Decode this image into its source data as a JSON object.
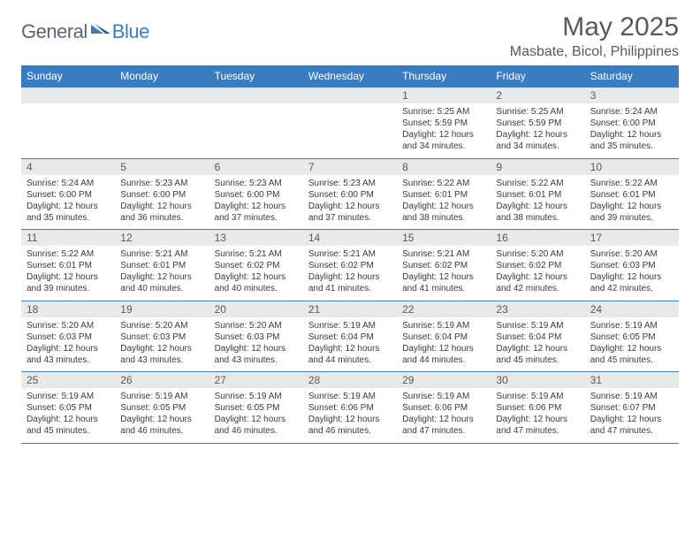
{
  "logo": {
    "general": "General",
    "blue": "Blue"
  },
  "title": "May 2025",
  "location": "Masbate, Bicol, Philippines",
  "colors": {
    "header_bg": "#3b7bbf",
    "header_text": "#ffffff",
    "daynum_bg": "#e9e9e9",
    "text_gray": "#595959",
    "body_text": "#3a3a3a",
    "border": "#3b7bbf",
    "page_bg": "#ffffff"
  },
  "typography": {
    "title_fontsize": 30,
    "location_fontsize": 16,
    "dayheader_fontsize": 12,
    "daynum_fontsize": 12,
    "cell_fontsize": 10
  },
  "day_names": [
    "Sunday",
    "Monday",
    "Tuesday",
    "Wednesday",
    "Thursday",
    "Friday",
    "Saturday"
  ],
  "weeks": [
    [
      null,
      null,
      null,
      null,
      {
        "n": "1",
        "sr": "Sunrise: 5:25 AM",
        "ss": "Sunset: 5:59 PM",
        "d1": "Daylight: 12 hours",
        "d2": "and 34 minutes."
      },
      {
        "n": "2",
        "sr": "Sunrise: 5:25 AM",
        "ss": "Sunset: 5:59 PM",
        "d1": "Daylight: 12 hours",
        "d2": "and 34 minutes."
      },
      {
        "n": "3",
        "sr": "Sunrise: 5:24 AM",
        "ss": "Sunset: 6:00 PM",
        "d1": "Daylight: 12 hours",
        "d2": "and 35 minutes."
      }
    ],
    [
      {
        "n": "4",
        "sr": "Sunrise: 5:24 AM",
        "ss": "Sunset: 6:00 PM",
        "d1": "Daylight: 12 hours",
        "d2": "and 35 minutes."
      },
      {
        "n": "5",
        "sr": "Sunrise: 5:23 AM",
        "ss": "Sunset: 6:00 PM",
        "d1": "Daylight: 12 hours",
        "d2": "and 36 minutes."
      },
      {
        "n": "6",
        "sr": "Sunrise: 5:23 AM",
        "ss": "Sunset: 6:00 PM",
        "d1": "Daylight: 12 hours",
        "d2": "and 37 minutes."
      },
      {
        "n": "7",
        "sr": "Sunrise: 5:23 AM",
        "ss": "Sunset: 6:00 PM",
        "d1": "Daylight: 12 hours",
        "d2": "and 37 minutes."
      },
      {
        "n": "8",
        "sr": "Sunrise: 5:22 AM",
        "ss": "Sunset: 6:01 PM",
        "d1": "Daylight: 12 hours",
        "d2": "and 38 minutes."
      },
      {
        "n": "9",
        "sr": "Sunrise: 5:22 AM",
        "ss": "Sunset: 6:01 PM",
        "d1": "Daylight: 12 hours",
        "d2": "and 38 minutes."
      },
      {
        "n": "10",
        "sr": "Sunrise: 5:22 AM",
        "ss": "Sunset: 6:01 PM",
        "d1": "Daylight: 12 hours",
        "d2": "and 39 minutes."
      }
    ],
    [
      {
        "n": "11",
        "sr": "Sunrise: 5:22 AM",
        "ss": "Sunset: 6:01 PM",
        "d1": "Daylight: 12 hours",
        "d2": "and 39 minutes."
      },
      {
        "n": "12",
        "sr": "Sunrise: 5:21 AM",
        "ss": "Sunset: 6:01 PM",
        "d1": "Daylight: 12 hours",
        "d2": "and 40 minutes."
      },
      {
        "n": "13",
        "sr": "Sunrise: 5:21 AM",
        "ss": "Sunset: 6:02 PM",
        "d1": "Daylight: 12 hours",
        "d2": "and 40 minutes."
      },
      {
        "n": "14",
        "sr": "Sunrise: 5:21 AM",
        "ss": "Sunset: 6:02 PM",
        "d1": "Daylight: 12 hours",
        "d2": "and 41 minutes."
      },
      {
        "n": "15",
        "sr": "Sunrise: 5:21 AM",
        "ss": "Sunset: 6:02 PM",
        "d1": "Daylight: 12 hours",
        "d2": "and 41 minutes."
      },
      {
        "n": "16",
        "sr": "Sunrise: 5:20 AM",
        "ss": "Sunset: 6:02 PM",
        "d1": "Daylight: 12 hours",
        "d2": "and 42 minutes."
      },
      {
        "n": "17",
        "sr": "Sunrise: 5:20 AM",
        "ss": "Sunset: 6:03 PM",
        "d1": "Daylight: 12 hours",
        "d2": "and 42 minutes."
      }
    ],
    [
      {
        "n": "18",
        "sr": "Sunrise: 5:20 AM",
        "ss": "Sunset: 6:03 PM",
        "d1": "Daylight: 12 hours",
        "d2": "and 43 minutes."
      },
      {
        "n": "19",
        "sr": "Sunrise: 5:20 AM",
        "ss": "Sunset: 6:03 PM",
        "d1": "Daylight: 12 hours",
        "d2": "and 43 minutes."
      },
      {
        "n": "20",
        "sr": "Sunrise: 5:20 AM",
        "ss": "Sunset: 6:03 PM",
        "d1": "Daylight: 12 hours",
        "d2": "and 43 minutes."
      },
      {
        "n": "21",
        "sr": "Sunrise: 5:19 AM",
        "ss": "Sunset: 6:04 PM",
        "d1": "Daylight: 12 hours",
        "d2": "and 44 minutes."
      },
      {
        "n": "22",
        "sr": "Sunrise: 5:19 AM",
        "ss": "Sunset: 6:04 PM",
        "d1": "Daylight: 12 hours",
        "d2": "and 44 minutes."
      },
      {
        "n": "23",
        "sr": "Sunrise: 5:19 AM",
        "ss": "Sunset: 6:04 PM",
        "d1": "Daylight: 12 hours",
        "d2": "and 45 minutes."
      },
      {
        "n": "24",
        "sr": "Sunrise: 5:19 AM",
        "ss": "Sunset: 6:05 PM",
        "d1": "Daylight: 12 hours",
        "d2": "and 45 minutes."
      }
    ],
    [
      {
        "n": "25",
        "sr": "Sunrise: 5:19 AM",
        "ss": "Sunset: 6:05 PM",
        "d1": "Daylight: 12 hours",
        "d2": "and 45 minutes."
      },
      {
        "n": "26",
        "sr": "Sunrise: 5:19 AM",
        "ss": "Sunset: 6:05 PM",
        "d1": "Daylight: 12 hours",
        "d2": "and 46 minutes."
      },
      {
        "n": "27",
        "sr": "Sunrise: 5:19 AM",
        "ss": "Sunset: 6:05 PM",
        "d1": "Daylight: 12 hours",
        "d2": "and 46 minutes."
      },
      {
        "n": "28",
        "sr": "Sunrise: 5:19 AM",
        "ss": "Sunset: 6:06 PM",
        "d1": "Daylight: 12 hours",
        "d2": "and 46 minutes."
      },
      {
        "n": "29",
        "sr": "Sunrise: 5:19 AM",
        "ss": "Sunset: 6:06 PM",
        "d1": "Daylight: 12 hours",
        "d2": "and 47 minutes."
      },
      {
        "n": "30",
        "sr": "Sunrise: 5:19 AM",
        "ss": "Sunset: 6:06 PM",
        "d1": "Daylight: 12 hours",
        "d2": "and 47 minutes."
      },
      {
        "n": "31",
        "sr": "Sunrise: 5:19 AM",
        "ss": "Sunset: 6:07 PM",
        "d1": "Daylight: 12 hours",
        "d2": "and 47 minutes."
      }
    ]
  ]
}
